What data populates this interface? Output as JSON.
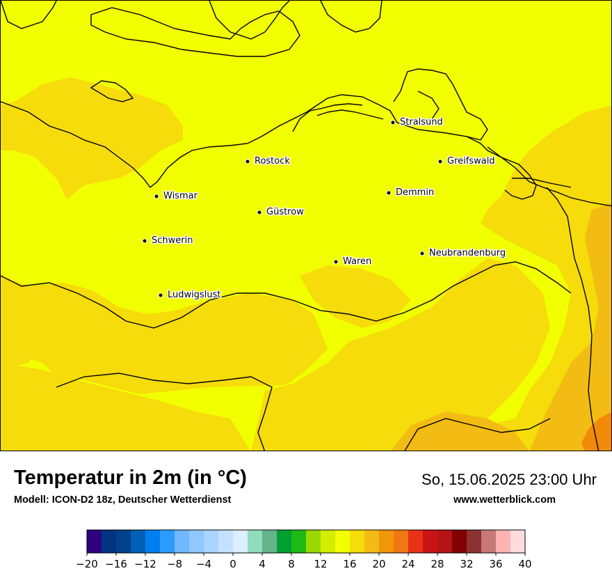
{
  "map": {
    "colors": {
      "background": "#f2ff00",
      "warm_zone": "#f5dc0a",
      "hot_zone": "#f2bc14",
      "hottest": "#f28a0a",
      "coastline": "#000000"
    },
    "cities": [
      {
        "name": "Stralsund"
      },
      {
        "name": "Rostock"
      },
      {
        "name": "Greifswald"
      },
      {
        "name": "Wismar"
      },
      {
        "name": "Demmin"
      },
      {
        "name": "Güstrow"
      },
      {
        "name": "Schwerin"
      },
      {
        "name": "Neubrandenburg"
      },
      {
        "name": "Waren"
      },
      {
        "name": "Ludwigslust"
      }
    ]
  },
  "footer": {
    "title": "Temperatur in 2m (in °C)",
    "model": "Modell: ICON-D2 18z, Deutscher Wetterdienst",
    "datetime": "So, 15.06.2025 23:00 Uhr",
    "website": "www.wetterblick.com"
  },
  "colorbar": {
    "min": -20,
    "max": 40,
    "step": 2,
    "colors": [
      "#2e0080",
      "#003380",
      "#00408c",
      "#0060b8",
      "#0080f0",
      "#2a9cff",
      "#70b8ff",
      "#8ec8ff",
      "#a8d4ff",
      "#c4e2ff",
      "#dceeff",
      "#92dcbe",
      "#64b48c",
      "#00a032",
      "#1eb914",
      "#9ad800",
      "#d4ec00",
      "#f2ff00",
      "#f5dc0a",
      "#f2bc14",
      "#f0960a",
      "#f07814",
      "#e83214",
      "#c81414",
      "#b41414",
      "#820000",
      "#8c3232",
      "#c87878",
      "#ffb4b4",
      "#ffdcdc"
    ],
    "tick_labels": [
      "−20",
      "−16",
      "−12",
      "−8",
      "−4",
      "0",
      "4",
      "8",
      "12",
      "16",
      "20",
      "24",
      "28",
      "32",
      "36",
      "40"
    ]
  }
}
